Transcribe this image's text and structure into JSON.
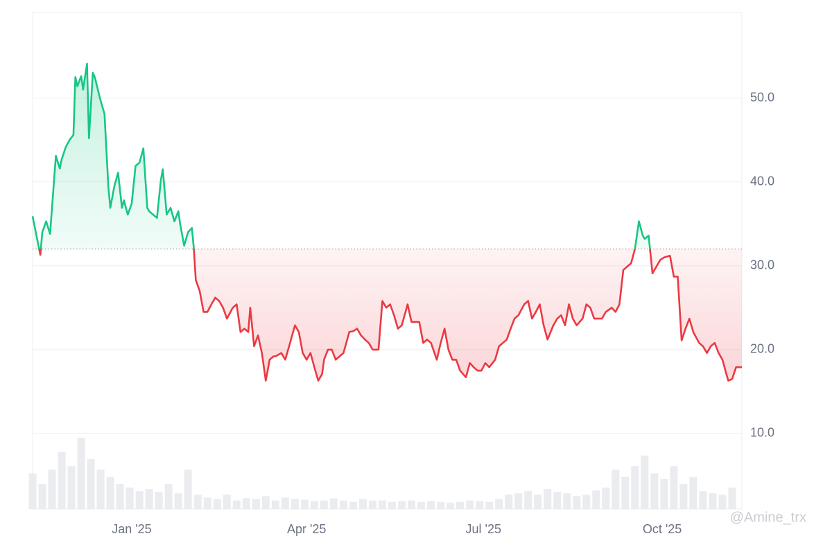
{
  "chart_data": {
    "type": "line",
    "x": [
      0,
      2,
      4,
      5,
      7,
      9,
      10,
      12,
      14,
      15,
      17,
      19,
      21,
      22,
      23,
      25,
      26,
      28,
      29,
      31,
      32,
      34,
      35,
      37,
      39,
      40,
      42,
      44,
      46,
      47,
      49,
      51,
      53,
      55,
      57,
      59,
      60,
      62,
      64,
      66,
      67,
      69,
      71,
      73,
      75,
      76,
      78,
      80,
      82,
      83,
      84,
      86,
      88,
      90,
      92,
      94,
      96,
      98,
      100,
      103,
      105,
      107,
      109,
      111,
      112,
      114,
      116,
      118,
      120,
      122,
      124,
      125,
      128,
      130,
      132,
      135,
      137,
      139,
      141,
      143,
      145,
      147,
      149,
      150,
      152,
      154,
      156,
      158,
      160,
      163,
      165,
      167,
      169,
      171,
      173,
      175,
      178,
      180,
      182,
      184,
      186,
      188,
      190,
      193,
      195,
      197,
      199,
      201,
      203,
      205,
      208,
      210,
      212,
      214,
      216,
      218,
      220,
      223,
      225,
      227,
      229,
      231,
      233,
      235,
      238,
      240,
      242,
      244,
      246,
      248,
      250,
      253,
      255,
      257,
      259,
      261,
      263,
      265,
      268,
      270,
      272,
      274,
      276,
      278,
      280,
      283,
      285,
      287,
      289,
      291,
      293,
      295,
      298,
      300,
      302,
      304,
      306,
      308,
      310,
      312,
      314,
      315,
      317,
      319,
      321,
      323,
      325,
      328,
      330,
      332,
      334,
      336,
      338,
      340,
      343,
      345,
      347,
      349,
      351,
      353,
      355,
      357,
      358,
      360,
      362,
      365
    ],
    "series": [
      {
        "values": [
          35.9,
          33.6,
          31.3,
          34.0,
          35.3,
          33.8,
          36.9,
          43.1,
          41.6,
          42.7,
          44.1,
          45.0,
          45.6,
          52.5,
          51.4,
          52.6,
          51.0,
          54.1,
          45.2,
          53.0,
          52.5,
          50.6,
          49.7,
          48.1,
          39.4,
          36.9,
          39.4,
          41.1,
          36.9,
          37.8,
          36.1,
          37.4,
          41.9,
          42.3,
          44.0,
          36.9,
          36.5,
          36.1,
          35.7,
          40.2,
          41.5,
          36.1,
          36.9,
          35.3,
          36.5,
          34.9,
          32.4,
          34.0,
          34.5,
          32.0,
          28.3,
          27.0,
          24.5,
          24.5,
          25.4,
          26.2,
          25.8,
          25.0,
          23.7,
          25.0,
          25.4,
          22.1,
          22.5,
          22.1,
          25.0,
          20.4,
          21.7,
          19.6,
          16.3,
          18.8,
          19.2,
          19.2,
          19.6,
          18.8,
          20.4,
          22.9,
          22.1,
          19.6,
          18.8,
          19.6,
          17.9,
          16.3,
          17.1,
          18.8,
          20.0,
          20.0,
          18.8,
          19.2,
          19.6,
          22.1,
          22.2,
          22.5,
          21.7,
          21.2,
          20.8,
          20.0,
          20.0,
          25.8,
          25.0,
          25.4,
          24.1,
          22.5,
          22.9,
          25.4,
          23.3,
          23.3,
          23.3,
          20.8,
          21.2,
          20.8,
          18.8,
          20.8,
          22.5,
          20.0,
          18.8,
          18.8,
          17.5,
          16.7,
          18.4,
          17.9,
          17.5,
          17.5,
          18.4,
          17.9,
          18.8,
          20.4,
          20.8,
          21.2,
          22.5,
          23.7,
          24.1,
          25.4,
          25.8,
          23.7,
          24.5,
          25.4,
          22.9,
          21.2,
          22.9,
          23.7,
          24.1,
          22.9,
          25.4,
          23.7,
          22.9,
          23.7,
          25.4,
          25.0,
          23.7,
          23.7,
          23.7,
          24.5,
          25.0,
          24.5,
          25.4,
          29.5,
          29.9,
          30.3,
          32.0,
          35.3,
          33.6,
          33.2,
          33.6,
          29.1,
          29.9,
          30.7,
          31.0,
          31.2,
          28.7,
          28.7,
          21.1,
          22.5,
          23.7,
          22.1,
          20.8,
          20.4,
          19.6,
          20.4,
          20.8,
          19.6,
          18.8,
          17.1,
          16.3,
          16.5,
          17.9,
          17.9
        ]
      }
    ],
    "baseline": 32.0,
    "up_color": "#16c784",
    "down_color": "#ea3943",
    "xlim": [
      0,
      365
    ],
    "xticks": [
      {
        "value": 51,
        "label": "Jan '25"
      },
      {
        "value": 141,
        "label": "Apr '25"
      },
      {
        "value": 232,
        "label": "Jul '25"
      },
      {
        "value": 324,
        "label": "Oct '25"
      }
    ],
    "ylim": [
      1.0,
      60.2
    ],
    "yticks": [
      {
        "value": 10,
        "label": "10.0"
      },
      {
        "value": 20,
        "label": "20.0"
      },
      {
        "value": 30,
        "label": "30.0"
      },
      {
        "value": 40,
        "label": "40.0"
      },
      {
        "value": 50,
        "label": "50.0"
      }
    ],
    "grid": true,
    "volume": {
      "color": "#e5e7eb",
      "lim": [
        0,
        100
      ],
      "x": [
        0,
        5,
        10,
        15,
        20,
        25,
        30,
        35,
        40,
        45,
        50,
        55,
        60,
        65,
        70,
        75,
        80,
        85,
        90,
        95,
        100,
        105,
        110,
        115,
        120,
        125,
        130,
        135,
        140,
        145,
        150,
        155,
        160,
        165,
        170,
        175,
        180,
        185,
        190,
        195,
        200,
        205,
        210,
        215,
        220,
        225,
        230,
        235,
        240,
        245,
        250,
        255,
        260,
        265,
        270,
        275,
        280,
        285,
        290,
        295,
        300,
        305,
        310,
        315,
        320,
        325,
        330,
        335,
        340,
        345,
        350,
        355,
        360
      ],
      "values": [
        50,
        35,
        55,
        80,
        60,
        100,
        70,
        55,
        45,
        35,
        30,
        25,
        28,
        24,
        35,
        22,
        55,
        20,
        16,
        14,
        20,
        12,
        15,
        14,
        18,
        12,
        16,
        14,
        13,
        11,
        12,
        15,
        12,
        10,
        14,
        12,
        12,
        10,
        11,
        12,
        10,
        11,
        10,
        9,
        10,
        12,
        11,
        10,
        14,
        20,
        22,
        25,
        20,
        28,
        24,
        22,
        18,
        20,
        26,
        30,
        55,
        45,
        60,
        75,
        50,
        42,
        60,
        35,
        45,
        25,
        22,
        20,
        30
      ]
    },
    "watermark": "@Amine_trx"
  }
}
